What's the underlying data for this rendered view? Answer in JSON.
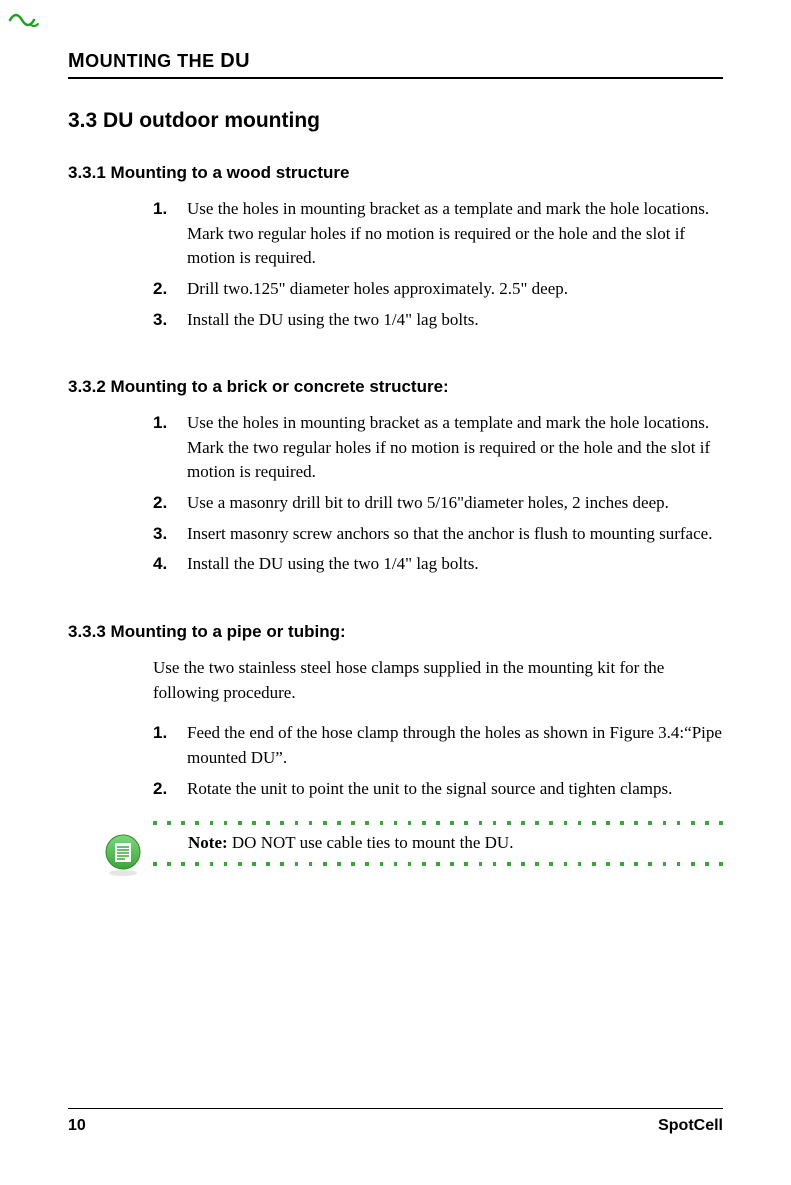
{
  "header": {
    "running_title_prefix": "M",
    "running_title_mid": "OUNTING",
    "running_title_sep": " THE ",
    "running_title_suffix": "DU"
  },
  "section": {
    "heading": "3.3 DU outdoor mounting"
  },
  "sub1": {
    "heading": "3.3.1 Mounting to a wood structure",
    "items": [
      {
        "n": "1.",
        "t": "Use the holes in mounting bracket as a template and mark the hole locations. Mark two regular holes if no motion is required or the hole and the slot if motion is required."
      },
      {
        "n": "2.",
        "t": "Drill two.125\" diameter holes approximately. 2.5\" deep."
      },
      {
        "n": "3.",
        "t": "Install the DU using the two 1/4\" lag bolts."
      }
    ]
  },
  "sub2": {
    "heading": "3.3.2 Mounting to a brick or concrete structure:",
    "items": [
      {
        "n": "1.",
        "t": "Use the holes in mounting bracket as a template and mark the hole locations. Mark the two regular holes if no motion is required or the hole and the slot if motion is required."
      },
      {
        "n": "2.",
        "t": "Use a masonry drill bit to drill two 5/16\"diameter holes, 2 inches deep."
      },
      {
        "n": "3.",
        "t": "Insert masonry screw anchors so that the anchor is flush to mounting surface."
      },
      {
        "n": "4.",
        "t": "Install the DU using the two 1/4\" lag bolts."
      }
    ]
  },
  "sub3": {
    "heading": "3.3.3 Mounting to a pipe or tubing:",
    "intro": "Use the two stainless steel hose clamps supplied in the mounting kit for the following procedure.",
    "items": [
      {
        "n": "1.",
        "t": "Feed the end of the hose clamp through the holes as shown in Figure 3.4:“Pipe mounted DU”."
      },
      {
        "n": "2.",
        "t": "Rotate the unit to point the unit to the signal source and tighten clamps."
      }
    ]
  },
  "note": {
    "label": "Note:",
    "text": " DO NOT use cable ties to mount the DU.",
    "dot_color": "#3aa63a",
    "dot_count": 41
  },
  "footer": {
    "page": "10",
    "brand": "SpotCell"
  },
  "icons": {
    "note_fill": "#5fbf5f",
    "note_stroke": "#2e8b2e",
    "logo_green": "#1fa01f"
  }
}
